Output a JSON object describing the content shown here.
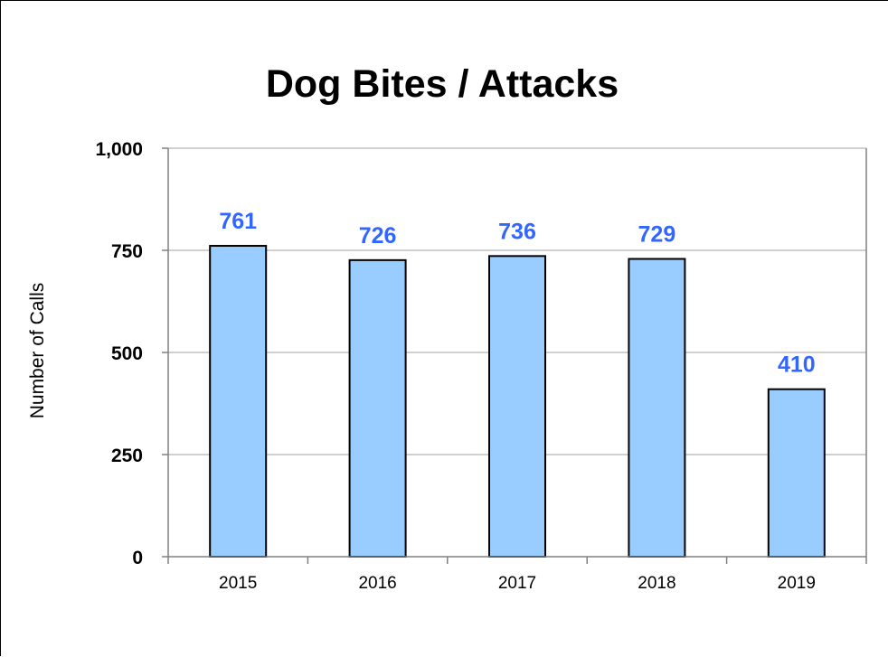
{
  "chart_data": {
    "type": "bar",
    "title": "Dog Bites / Attacks",
    "xlabel": "",
    "ylabel": "Number of Calls",
    "categories": [
      "2015",
      "2016",
      "2017",
      "2018",
      "2019"
    ],
    "values": [
      761,
      726,
      736,
      729,
      410
    ],
    "data_labels": [
      "761",
      "726",
      "736",
      "729",
      "410"
    ],
    "ylim": [
      0,
      1000
    ],
    "y_ticks": [
      0,
      250,
      500,
      750,
      1000
    ],
    "y_tick_labels": [
      "0",
      "250",
      "500",
      "750",
      "1,000"
    ],
    "grid": true,
    "legend": "none",
    "colors": {
      "bar_fill": "#99ccff",
      "bar_stroke": "#000000",
      "data_label": "#3366ff",
      "gridline": "#c0c0c0",
      "axis": "#808080"
    }
  }
}
